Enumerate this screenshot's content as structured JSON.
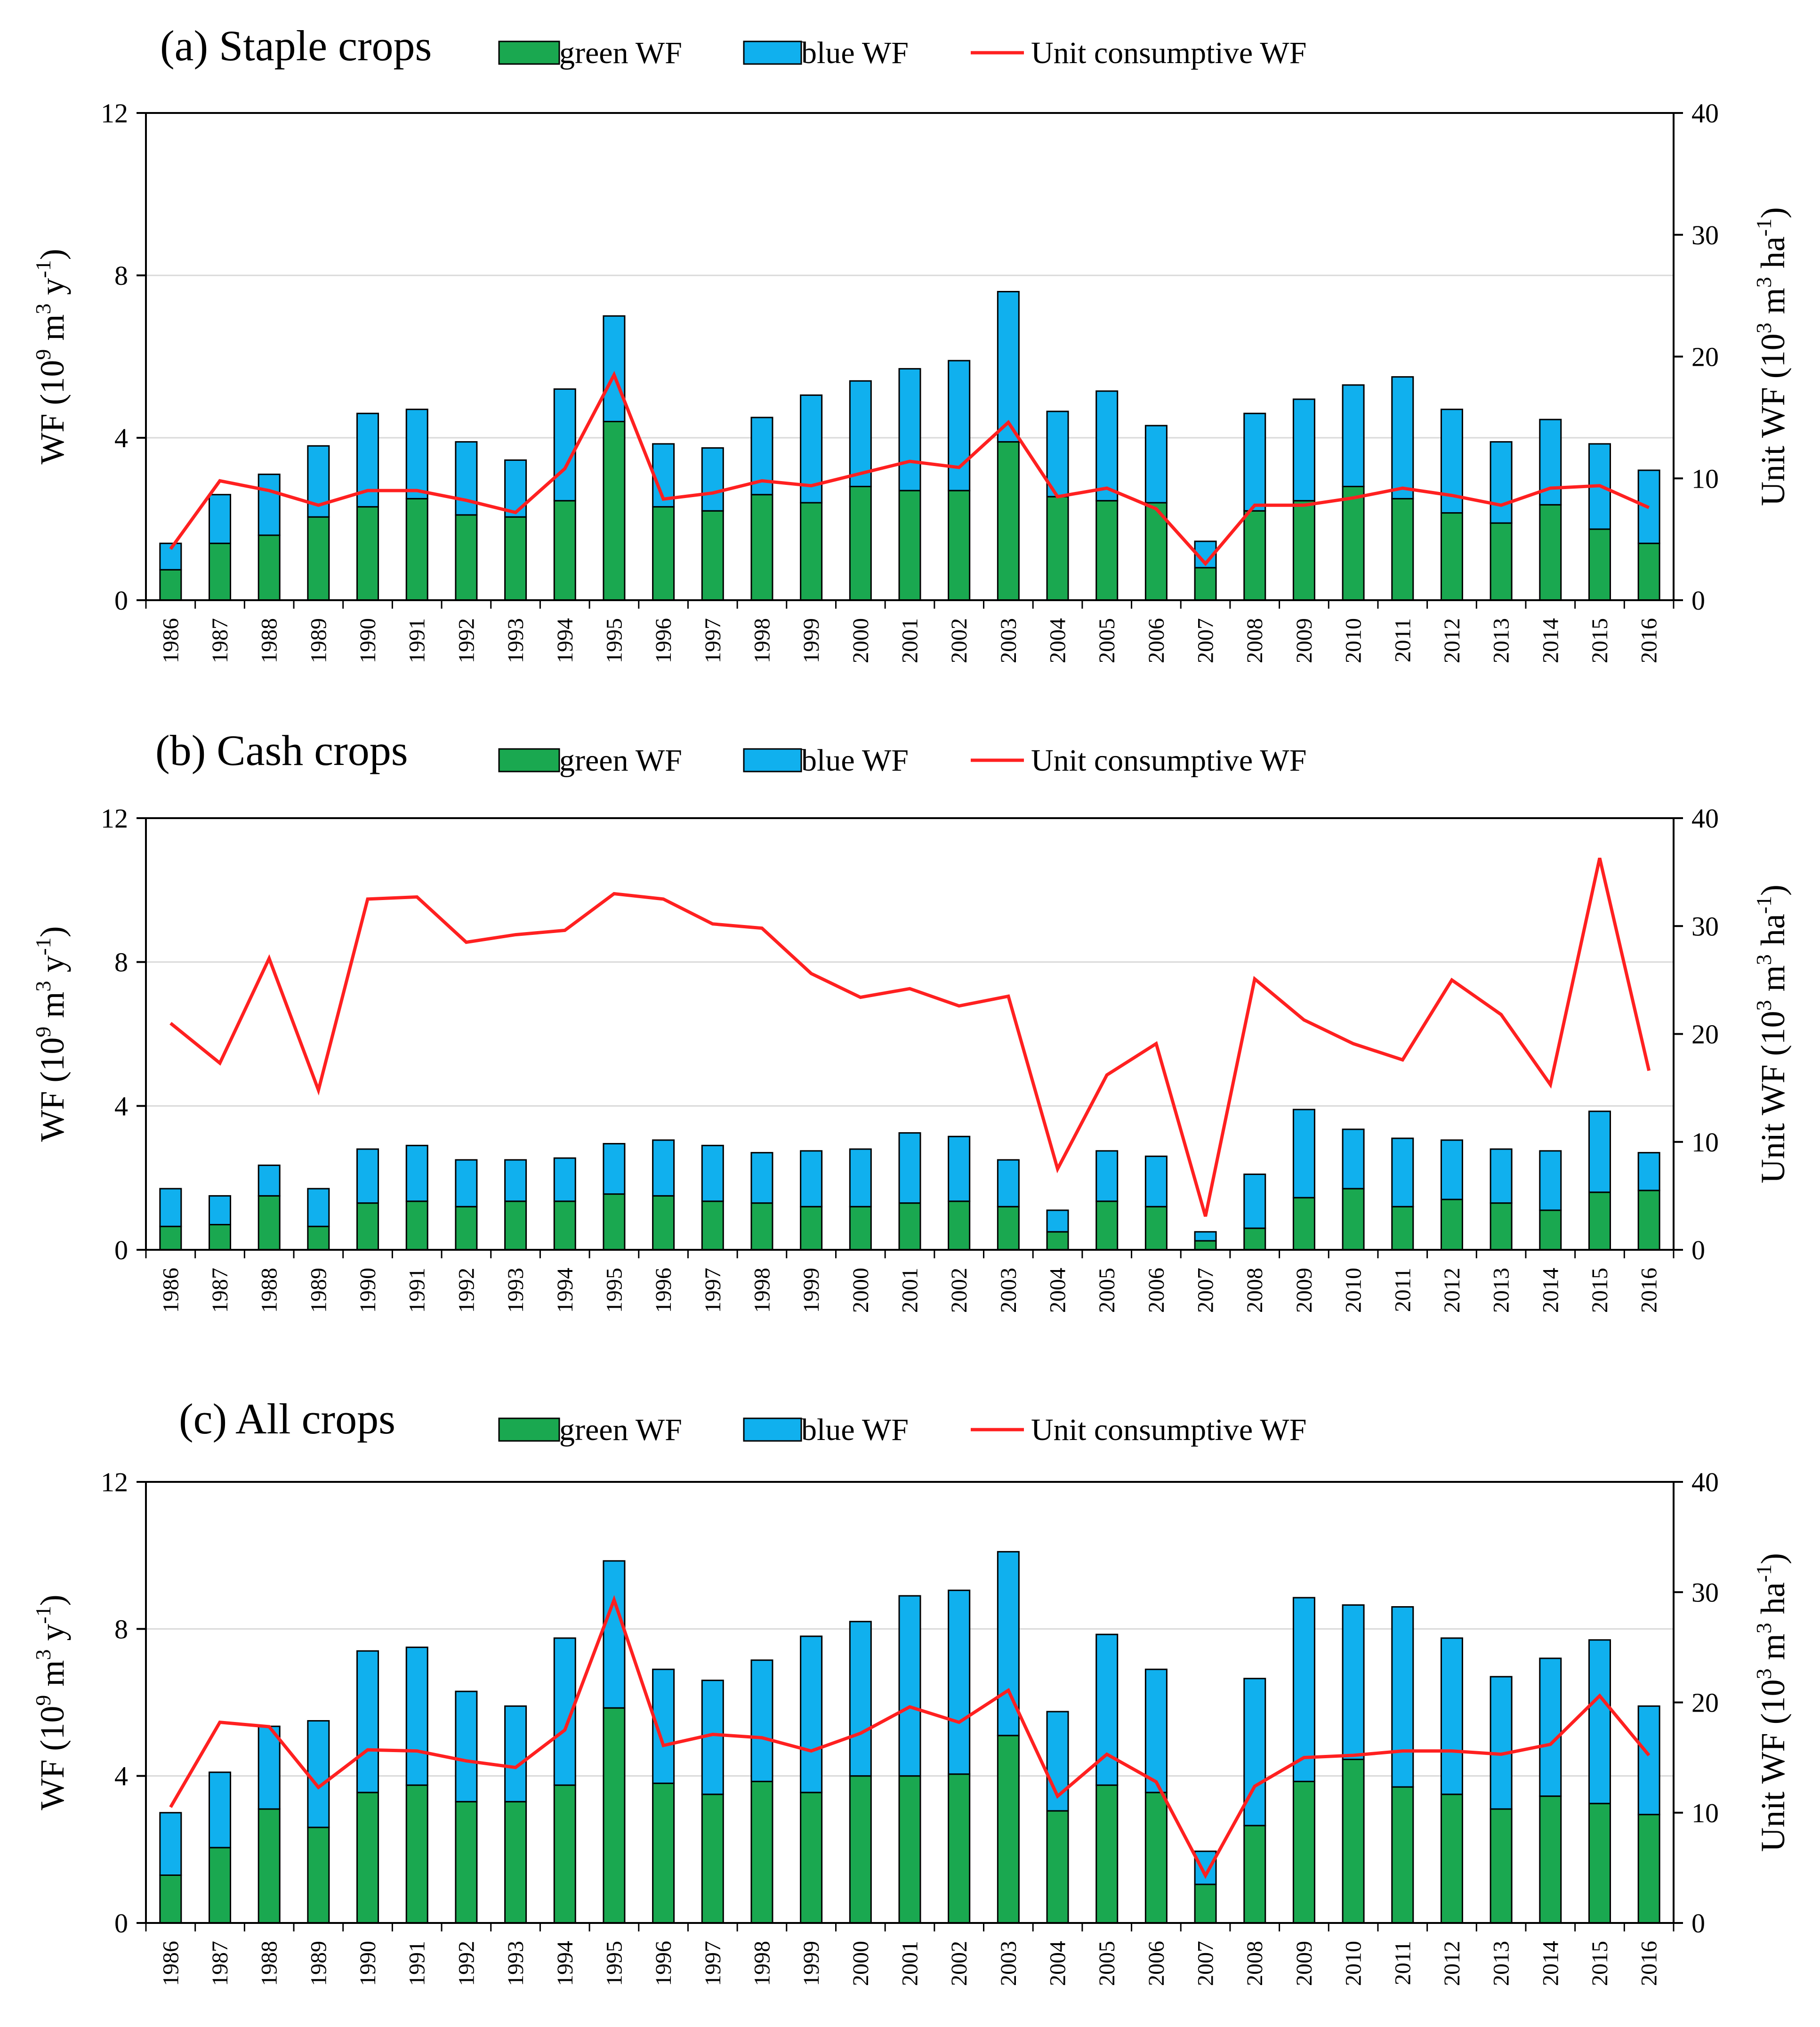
{
  "figure": {
    "legend": {
      "green_label": "green WF",
      "blue_label": "blue WF",
      "line_label": "Unit consumptive WF"
    },
    "colors": {
      "green": "#1aa850",
      "blue": "#10b0ee",
      "line": "#ff2020",
      "grid": "#d9d9d9"
    },
    "axes": {
      "left_title_main": "WF (10",
      "left_title_sup1": "9",
      "left_title_mid": " m",
      "left_title_sup2": "3",
      "left_title_end": " y",
      "left_title_sup3": "-1",
      "left_title_close": ")",
      "right_title_main": "Unit WF (10",
      "right_title_sup1": "3",
      "right_title_mid": " m",
      "right_title_sup2": "3",
      "right_title_end": " ha",
      "right_title_sup3": "-1",
      "right_title_close": ")"
    }
  },
  "chart_data": [
    {
      "type": "bar",
      "title": "(a) Staple crops",
      "categories": [
        "1986",
        "1987",
        "1988",
        "1989",
        "1990",
        "1991",
        "1992",
        "1993",
        "1994",
        "1995",
        "1996",
        "1997",
        "1998",
        "1999",
        "2000",
        "2001",
        "2002",
        "2003",
        "2004",
        "2005",
        "2006",
        "2007",
        "2008",
        "2009",
        "2010",
        "2011",
        "2012",
        "2013",
        "2014",
        "2015",
        "2016"
      ],
      "series": [
        {
          "name": "green WF",
          "kind": "bar-stack",
          "values": [
            0.75,
            1.4,
            1.6,
            2.05,
            2.3,
            2.5,
            2.1,
            2.05,
            2.45,
            4.4,
            2.3,
            2.2,
            2.6,
            2.4,
            2.8,
            2.7,
            2.7,
            3.9,
            2.55,
            2.45,
            2.4,
            0.8,
            2.2,
            2.45,
            2.8,
            2.5,
            2.15,
            1.9,
            2.35,
            1.75,
            1.4
          ]
        },
        {
          "name": "blue WF",
          "kind": "bar-stack",
          "values": [
            0.65,
            1.2,
            1.5,
            1.75,
            2.3,
            2.2,
            1.8,
            1.4,
            2.75,
            2.6,
            1.55,
            1.55,
            1.9,
            2.65,
            2.6,
            3.0,
            3.2,
            3.7,
            2.1,
            2.7,
            1.9,
            0.65,
            2.4,
            2.5,
            2.5,
            3.0,
            2.55,
            2.0,
            2.1,
            2.1,
            1.8
          ]
        },
        {
          "name": "Unit consumptive WF",
          "kind": "line",
          "axis": "right",
          "values": [
            4.2,
            9.8,
            9.0,
            7.8,
            9.0,
            9.0,
            8.2,
            7.2,
            10.8,
            18.5,
            8.3,
            8.8,
            9.8,
            9.4,
            10.4,
            11.4,
            10.9,
            14.6,
            8.5,
            9.2,
            7.5,
            3.0,
            7.8,
            7.8,
            8.4,
            9.2,
            8.6,
            7.8,
            9.2,
            9.4,
            7.6
          ]
        }
      ],
      "ylabel": "WF (10^9 m^3 y^-1)",
      "y2label": "Unit WF (10^3 m^3 ha^-1)",
      "ylim": [
        0,
        12
      ],
      "y2lim": [
        0,
        40
      ],
      "yticks": [
        "0",
        "4",
        "8",
        "12"
      ],
      "y2ticks": [
        "0",
        "10",
        "20",
        "30",
        "40"
      ],
      "grid": true,
      "legend": "top"
    },
    {
      "type": "bar",
      "title": "(b) Cash crops",
      "categories": [
        "1986",
        "1987",
        "1988",
        "1989",
        "1990",
        "1991",
        "1992",
        "1993",
        "1994",
        "1995",
        "1996",
        "1997",
        "1998",
        "1999",
        "2000",
        "2001",
        "2002",
        "2003",
        "2004",
        "2005",
        "2006",
        "2007",
        "2008",
        "2009",
        "2010",
        "2011",
        "2012",
        "2013",
        "2014",
        "2015",
        "2016"
      ],
      "series": [
        {
          "name": "green WF",
          "kind": "bar-stack",
          "values": [
            0.65,
            0.7,
            1.5,
            0.65,
            1.3,
            1.35,
            1.2,
            1.35,
            1.35,
            1.55,
            1.5,
            1.35,
            1.3,
            1.2,
            1.2,
            1.3,
            1.35,
            1.2,
            0.5,
            1.35,
            1.2,
            0.25,
            0.6,
            1.45,
            1.7,
            1.2,
            1.4,
            1.3,
            1.1,
            1.6,
            1.65
          ]
        },
        {
          "name": "blue WF",
          "kind": "bar-stack",
          "values": [
            1.05,
            0.8,
            0.85,
            1.05,
            1.5,
            1.55,
            1.3,
            1.15,
            1.2,
            1.4,
            1.55,
            1.55,
            1.4,
            1.55,
            1.6,
            1.95,
            1.8,
            1.3,
            0.6,
            1.4,
            1.4,
            0.25,
            1.5,
            2.45,
            1.65,
            1.9,
            1.65,
            1.5,
            1.65,
            2.25,
            1.05
          ]
        },
        {
          "name": "Unit consumptive WF",
          "kind": "line",
          "axis": "right",
          "values": [
            21,
            17.3,
            27,
            14.8,
            32.5,
            32.7,
            28.5,
            29.2,
            29.6,
            33,
            32.5,
            30.2,
            29.8,
            25.6,
            23.4,
            24.2,
            22.6,
            23.5,
            7.5,
            16.2,
            19.1,
            3.1,
            25.1,
            21.3,
            19.1,
            17.6,
            25,
            21.8,
            15.3,
            36.3,
            16.6
          ]
        }
      ],
      "ylabel": "WF (10^9 m^3 y^-1)",
      "y2label": "Unit WF (10^3 m^3 ha^-1)",
      "ylim": [
        0,
        12
      ],
      "y2lim": [
        0,
        40
      ],
      "yticks": [
        "0",
        "4",
        "8",
        "12"
      ],
      "y2ticks": [
        "0",
        "10",
        "20",
        "30",
        "40"
      ],
      "grid": true,
      "legend": "top"
    },
    {
      "type": "bar",
      "title": "(c) All crops",
      "categories": [
        "1986",
        "1987",
        "1988",
        "1989",
        "1990",
        "1991",
        "1992",
        "1993",
        "1994",
        "1995",
        "1996",
        "1997",
        "1998",
        "1999",
        "2000",
        "2001",
        "2002",
        "2003",
        "2004",
        "2005",
        "2006",
        "2007",
        "2008",
        "2009",
        "2010",
        "2011",
        "2012",
        "2013",
        "2014",
        "2015",
        "2016"
      ],
      "series": [
        {
          "name": "green WF",
          "kind": "bar-stack",
          "values": [
            1.3,
            2.05,
            3.1,
            2.6,
            3.55,
            3.75,
            3.3,
            3.3,
            3.75,
            5.85,
            3.8,
            3.5,
            3.85,
            3.55,
            4.0,
            4.0,
            4.05,
            5.1,
            3.05,
            3.75,
            3.55,
            1.05,
            2.65,
            3.85,
            4.45,
            3.7,
            3.5,
            3.1,
            3.45,
            3.25,
            2.95
          ]
        },
        {
          "name": "blue WF",
          "kind": "bar-stack",
          "values": [
            1.7,
            2.05,
            2.25,
            2.9,
            3.85,
            3.75,
            3.0,
            2.6,
            4.0,
            4.0,
            3.1,
            3.1,
            3.3,
            4.25,
            4.2,
            4.9,
            5.0,
            5.0,
            2.7,
            4.1,
            3.35,
            0.9,
            4.0,
            5.0,
            4.2,
            4.9,
            4.25,
            3.6,
            3.75,
            4.45,
            2.95
          ]
        },
        {
          "name": "Unit consumptive WF",
          "kind": "line",
          "axis": "right",
          "values": [
            10.5,
            18.2,
            17.8,
            12.3,
            15.7,
            15.6,
            14.7,
            14.1,
            17.5,
            29.3,
            16.1,
            17.1,
            16.8,
            15.6,
            17.2,
            19.6,
            18.2,
            21.1,
            11.5,
            15.3,
            12.8,
            4.3,
            12.4,
            15,
            15.2,
            15.6,
            15.6,
            15.3,
            16.2,
            20.6,
            15.2
          ]
        }
      ],
      "ylabel": "WF (10^9 m^3 y^-1)",
      "y2label": "Unit WF (10^3 m^3 ha^-1)",
      "ylim": [
        0,
        12
      ],
      "y2lim": [
        0,
        40
      ],
      "yticks": [
        "0",
        "4",
        "8",
        "12"
      ],
      "y2ticks": [
        "0",
        "10",
        "20",
        "30",
        "40"
      ],
      "grid": true,
      "legend": "top"
    }
  ]
}
